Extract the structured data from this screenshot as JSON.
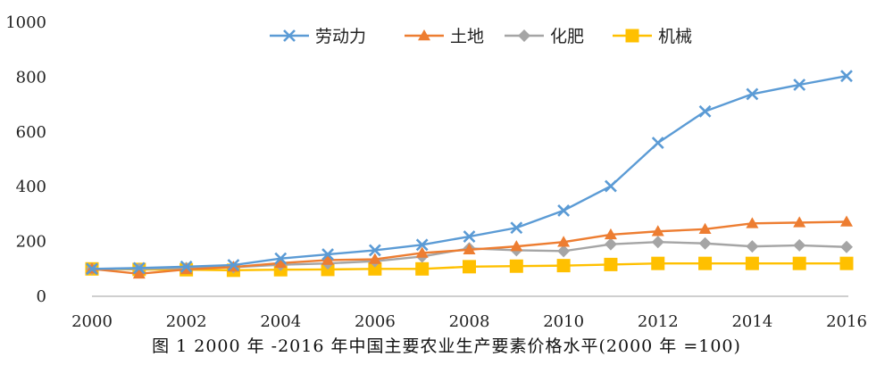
{
  "caption": "图 1   2000 年 -2016 年中国主要农业生产要素价格水平(2000 年 =100)",
  "chart_data": {
    "type": "line",
    "x": [
      2000,
      2001,
      2002,
      2003,
      2004,
      2005,
      2006,
      2007,
      2008,
      2009,
      2010,
      2011,
      2012,
      2013,
      2014,
      2015,
      2016
    ],
    "xticks": [
      "2000",
      "2002",
      "2004",
      "2006",
      "2008",
      "2010",
      "2012",
      "2014",
      "2016"
    ],
    "yticks": [
      "0",
      "200",
      "400",
      "600",
      "800",
      "1000"
    ],
    "ylim": [
      0,
      1000
    ],
    "grid": false,
    "legend_position": "top-center",
    "series": [
      {
        "name": "劳动力",
        "color": "#5b9bd5",
        "marker": "x",
        "values": [
          100,
          103,
          108,
          114,
          138,
          153,
          168,
          188,
          218,
          250,
          313,
          402,
          560,
          675,
          738,
          772,
          804
        ]
      },
      {
        "name": "土地",
        "color": "#ed7d31",
        "marker": "triangle",
        "values": [
          100,
          82,
          98,
          107,
          121,
          132,
          135,
          158,
          170,
          182,
          198,
          225,
          237,
          245,
          266,
          269,
          272
        ]
      },
      {
        "name": "化肥",
        "color": "#a5a5a5",
        "marker": "diamond",
        "values": [
          100,
          100,
          103,
          106,
          115,
          120,
          128,
          145,
          175,
          168,
          165,
          190,
          198,
          193,
          182,
          186,
          180
        ]
      },
      {
        "name": "机械",
        "color": "#ffc000",
        "marker": "square",
        "values": [
          100,
          98,
          97,
          95,
          97,
          98,
          100,
          100,
          108,
          110,
          112,
          116,
          120,
          120,
          120,
          120,
          120
        ]
      }
    ]
  }
}
